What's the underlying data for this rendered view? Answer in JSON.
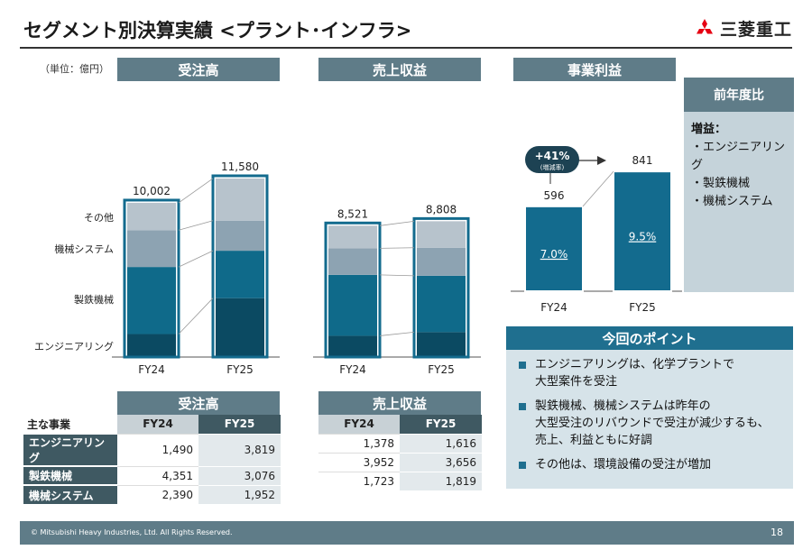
{
  "title": "セグメント別決算実績 <プラント･インフラ>",
  "logo": {
    "text": "三菱重工"
  },
  "unit": "（単位：億円）",
  "panels": {
    "orders": "受注高",
    "revenue": "売上収益",
    "profit": "事業利益"
  },
  "side": {
    "header": "前年度比",
    "increase": "増益：",
    "items": [
      "・エンジニアリング",
      "・製鉄機械",
      "・機械システム"
    ]
  },
  "chart_data": [
    {
      "type": "bar",
      "stacked": true,
      "title": "受注高",
      "categories": [
        "FY24",
        "FY25"
      ],
      "totals": [
        10002,
        11580
      ],
      "total_labels": [
        "10,002",
        "11,580"
      ],
      "series": [
        {
          "name": "エンジニアリング",
          "values": [
            1490,
            3819
          ]
        },
        {
          "name": "製鉄機械",
          "values": [
            4351,
            3076
          ]
        },
        {
          "name": "機械システム",
          "values": [
            2390,
            1952
          ]
        },
        {
          "name": "その他",
          "values": [
            1771,
            2733
          ]
        }
      ]
    },
    {
      "type": "bar",
      "stacked": true,
      "title": "売上収益",
      "categories": [
        "FY24",
        "FY25"
      ],
      "totals": [
        8521,
        8808
      ],
      "total_labels": [
        "8,521",
        "8,808"
      ],
      "series": [
        {
          "name": "エンジニアリング",
          "values": [
            1378,
            1616
          ]
        },
        {
          "name": "製鉄機械",
          "values": [
            3952,
            3656
          ]
        },
        {
          "name": "機械システム",
          "values": [
            1723,
            1819
          ]
        },
        {
          "name": "その他",
          "values": [
            1468,
            1717
          ]
        }
      ]
    },
    {
      "type": "bar",
      "title": "事業利益",
      "categories": [
        "FY24",
        "FY25"
      ],
      "values": [
        596,
        841
      ],
      "value_labels": [
        "596",
        "841"
      ],
      "margins": [
        "7.0%",
        "9.5%"
      ],
      "growth": "+41%",
      "growth_sub": "(増減率)"
    }
  ],
  "colors": {
    "engineering": "#0b4a62",
    "steel": "#0f6a8a",
    "machinery": "#8da3b2",
    "others": "#b7c3cc",
    "profit": "#136b8e",
    "header": "#5f7c88"
  },
  "legend": [
    "その他",
    "機械システム",
    "製鉄機械",
    "エンジニアリング"
  ],
  "tables": {
    "main_business": "主な事業",
    "orders": {
      "header": "受注高",
      "cols": [
        "FY24",
        "FY25"
      ],
      "rows": [
        {
          "label": "エンジニアリング",
          "fy24": "1,490",
          "fy25": "3,819"
        },
        {
          "label": "製鉄機械",
          "fy24": "4,351",
          "fy25": "3,076"
        },
        {
          "label": "機械システム",
          "fy24": "2,390",
          "fy25": "1,952"
        }
      ]
    },
    "revenue": {
      "header": "売上収益",
      "cols": [
        "FY24",
        "FY25"
      ],
      "rows": [
        {
          "fy24": "1,378",
          "fy25": "1,616"
        },
        {
          "fy24": "3,952",
          "fy25": "3,656"
        },
        {
          "fy24": "1,723",
          "fy25": "1,819"
        }
      ]
    }
  },
  "points": {
    "header": "今回のポイント",
    "items": [
      [
        "エンジニアリングは、化学プラントで",
        "大型案件を受注"
      ],
      [
        "製鉄機械、機械システムは昨年の",
        "大型受注のリバウンドで受注が減少するも、",
        "売上、利益ともに好調"
      ],
      [
        "その他は、環境設備の受注が増加"
      ]
    ]
  },
  "footer": {
    "copyright": "© Mitsubishi Heavy Industries, Ltd.  All Rights Reserved.",
    "page": "18"
  }
}
